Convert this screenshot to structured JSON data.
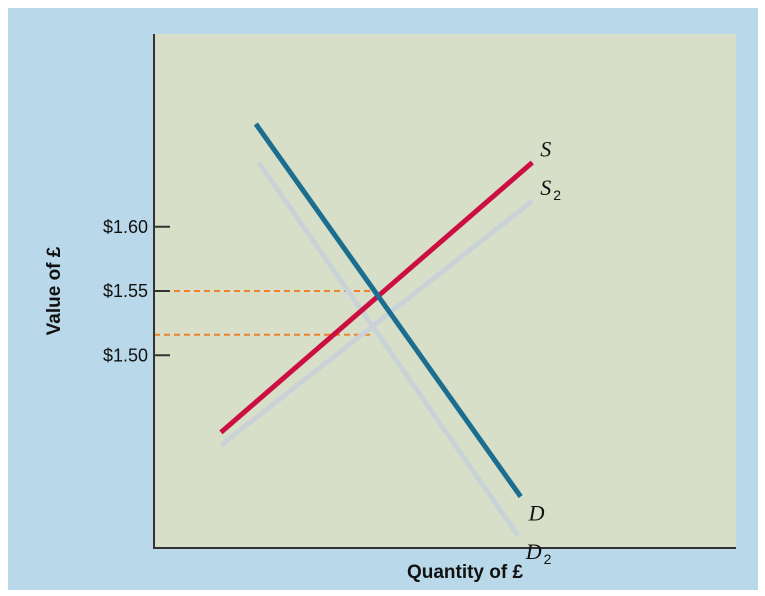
{
  "chart_data": {
    "type": "line",
    "title": "",
    "xlabel": "Quantity of £",
    "ylabel": "Value of £",
    "xlim": [
      0,
      10
    ],
    "ylim": [
      1.35,
      1.75
    ],
    "y_ticks": [
      {
        "value": 1.6,
        "label": "$1.60"
      },
      {
        "value": 1.55,
        "label": "$1.55"
      },
      {
        "value": 1.5,
        "label": "$1.50"
      }
    ],
    "grid": false,
    "series": [
      {
        "label": "S2",
        "label_main": "S",
        "label_sub": "2",
        "color": "#c9d3d7",
        "width": 5,
        "x": [
          1.15,
          6.5
        ],
        "y": [
          1.43,
          1.62
        ]
      },
      {
        "label": "D2",
        "label_main": "D",
        "label_sub": "2",
        "color": "#c9d3d7",
        "width": 5,
        "x": [
          1.8,
          6.25
        ],
        "y": [
          1.65,
          1.36
        ]
      },
      {
        "label": "S",
        "label_main": "S",
        "label_sub": "",
        "color": "#cc0f42",
        "width": 5,
        "x": [
          1.15,
          6.5
        ],
        "y": [
          1.44,
          1.65
        ]
      },
      {
        "label": "D",
        "label_main": "D",
        "label_sub": "",
        "color": "#1b6e8f",
        "width": 5,
        "x": [
          1.75,
          6.3
        ],
        "y": [
          1.68,
          1.39
        ]
      }
    ],
    "reference_lines": [
      {
        "y": 1.55,
        "x_end": 3.73,
        "color": "#f0822a"
      },
      {
        "y": 1.516,
        "x_end": 3.73,
        "color": "#f0822a"
      }
    ],
    "colors": {
      "outer_background": "#b9d9ea",
      "plot_background": "#d8dfc9",
      "axis": "#333333"
    }
  }
}
